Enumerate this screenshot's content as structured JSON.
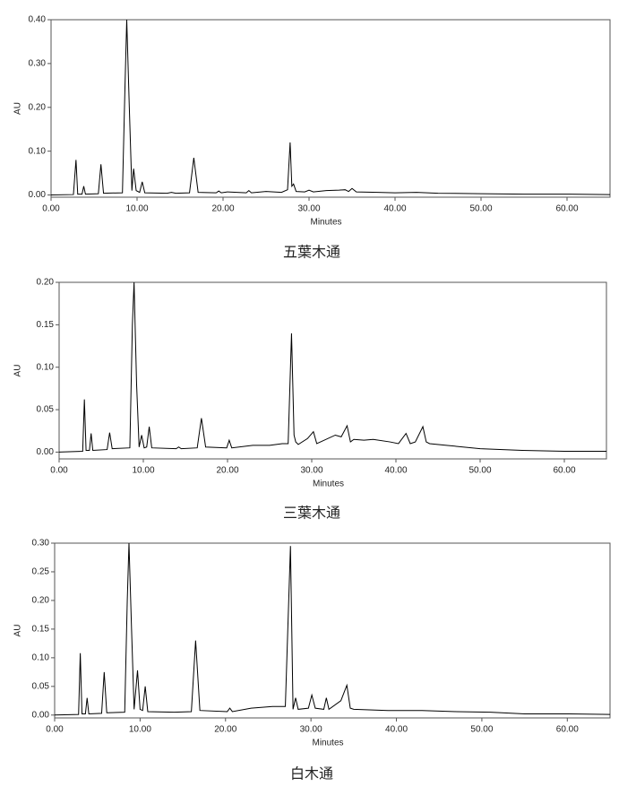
{
  "chart_data": [
    {
      "type": "line",
      "title": "五葉木通",
      "x_label": "Minutes",
      "y_label": "AU",
      "color": "#000000",
      "xlim": [
        0,
        65
      ],
      "ylim": [
        -0.005,
        0.4
      ],
      "xticks": [
        {
          "value": 0,
          "label": "0.00"
        },
        {
          "value": 10,
          "label": "10.00"
        },
        {
          "value": 20,
          "label": "20.00"
        },
        {
          "value": 30,
          "label": "30.00"
        },
        {
          "value": 40,
          "label": "40.00"
        },
        {
          "value": 50,
          "label": "50.00"
        },
        {
          "value": 60,
          "label": "60.00"
        }
      ],
      "yticks": [
        {
          "value": 0,
          "label": "0.00"
        },
        {
          "value": 0.1,
          "label": "0.10"
        },
        {
          "value": 0.2,
          "label": "0.20"
        },
        {
          "value": 0.3,
          "label": "0.30"
        },
        {
          "value": 0.4,
          "label": "0.40"
        }
      ],
      "x": [
        0,
        2.6,
        2.9,
        3.1,
        3.6,
        3.8,
        4.0,
        5.5,
        5.8,
        6.1,
        8.3,
        8.6,
        8.8,
        9.1,
        9.4,
        9.6,
        9.9,
        10.3,
        10.6,
        10.9,
        13.5,
        14,
        14.5,
        16.1,
        16.6,
        17.1,
        19.2,
        19.5,
        19.8,
        20.5,
        22.7,
        23,
        23.3,
        25,
        26.8,
        27.5,
        27.8,
        28.0,
        28.2,
        28.5,
        29.5,
        30,
        30.5,
        32,
        33.5,
        34.2,
        34.6,
        35,
        35.5,
        38,
        40,
        42.5,
        45,
        50,
        55,
        60,
        65
      ],
      "values": [
        0,
        0.001,
        0.08,
        0.002,
        0.002,
        0.02,
        0.002,
        0.003,
        0.07,
        0.004,
        0.005,
        0.25,
        0.4,
        0.2,
        0.01,
        0.06,
        0.01,
        0.006,
        0.03,
        0.005,
        0.004,
        0.006,
        0.004,
        0.005,
        0.085,
        0.006,
        0.005,
        0.009,
        0.005,
        0.007,
        0.005,
        0.01,
        0.005,
        0.008,
        0.006,
        0.012,
        0.12,
        0.02,
        0.025,
        0.008,
        0.007,
        0.011,
        0.007,
        0.01,
        0.011,
        0.012,
        0.008,
        0.015,
        0.007,
        0.006,
        0.005,
        0.006,
        0.004,
        0.003,
        0.002,
        0.002,
        0.001
      ]
    },
    {
      "type": "line",
      "title": "三葉木通",
      "x_label": "Minutes",
      "y_label": "AU",
      "color": "#000000",
      "xlim": [
        0,
        65
      ],
      "ylim": [
        -0.008,
        0.2
      ],
      "xticks": [
        {
          "value": 0,
          "label": "0.00"
        },
        {
          "value": 10,
          "label": "10.00"
        },
        {
          "value": 20,
          "label": "20.00"
        },
        {
          "value": 30,
          "label": "30.00"
        },
        {
          "value": 40,
          "label": "40.00"
        },
        {
          "value": 50,
          "label": "50.00"
        },
        {
          "value": 60,
          "label": "60.00"
        }
      ],
      "yticks": [
        {
          "value": 0,
          "label": "0.00"
        },
        {
          "value": 0.05,
          "label": "0.05"
        },
        {
          "value": 0.1,
          "label": "0.10"
        },
        {
          "value": 0.15,
          "label": "0.15"
        },
        {
          "value": 0.2,
          "label": "0.20"
        }
      ],
      "x": [
        0,
        2.8,
        3.0,
        3.2,
        3.6,
        3.8,
        4.0,
        5.7,
        6.0,
        6.3,
        8.4,
        8.7,
        8.9,
        9.2,
        9.5,
        9.8,
        10.1,
        10.4,
        10.7,
        11.0,
        13.9,
        14.2,
        14.5,
        16.4,
        16.9,
        17.4,
        19.9,
        20.2,
        20.5,
        23,
        25,
        26.5,
        27.2,
        27.6,
        27.9,
        28.1,
        28.4,
        29.5,
        30.2,
        30.6,
        32.8,
        33.5,
        34.2,
        34.6,
        35,
        36.2,
        37.3,
        39.3,
        40.3,
        41.2,
        41.7,
        42.3,
        43.2,
        43.6,
        44,
        46,
        50,
        55,
        60,
        65
      ],
      "values": [
        0,
        0.001,
        0.062,
        0.002,
        0.002,
        0.022,
        0.002,
        0.003,
        0.023,
        0.004,
        0.005,
        0.15,
        0.2,
        0.08,
        0.006,
        0.02,
        0.005,
        0.006,
        0.03,
        0.005,
        0.004,
        0.006,
        0.004,
        0.005,
        0.04,
        0.006,
        0.005,
        0.014,
        0.005,
        0.008,
        0.008,
        0.01,
        0.01,
        0.14,
        0.02,
        0.012,
        0.009,
        0.016,
        0.024,
        0.01,
        0.02,
        0.018,
        0.031,
        0.012,
        0.015,
        0.014,
        0.015,
        0.012,
        0.01,
        0.022,
        0.01,
        0.012,
        0.03,
        0.012,
        0.01,
        0.008,
        0.004,
        0.002,
        0.001,
        0.001
      ]
    },
    {
      "type": "line",
      "title": "白木通",
      "x_label": "Minutes",
      "y_label": "AU",
      "color": "#000000",
      "xlim": [
        0,
        65
      ],
      "ylim": [
        -0.005,
        0.3
      ],
      "xticks": [
        {
          "value": 0,
          "label": "0.00"
        },
        {
          "value": 10,
          "label": "10.00"
        },
        {
          "value": 20,
          "label": "20.00"
        },
        {
          "value": 30,
          "label": "30.00"
        },
        {
          "value": 40,
          "label": "40.00"
        },
        {
          "value": 50,
          "label": "50.00"
        },
        {
          "value": 60,
          "label": "60.00"
        }
      ],
      "yticks": [
        {
          "value": 0,
          "label": "0.00"
        },
        {
          "value": 0.05,
          "label": "0.05"
        },
        {
          "value": 0.1,
          "label": "0.10"
        },
        {
          "value": 0.15,
          "label": "0.15"
        },
        {
          "value": 0.2,
          "label": "0.20"
        },
        {
          "value": 0.25,
          "label": "0.25"
        },
        {
          "value": 0.3,
          "label": "0.30"
        }
      ],
      "x": [
        0,
        2.8,
        3.0,
        3.2,
        3.6,
        3.8,
        4.0,
        5.5,
        5.8,
        6.1,
        8.2,
        8.5,
        8.7,
        9.0,
        9.3,
        9.7,
        10.0,
        10.3,
        10.6,
        10.9,
        14,
        16.0,
        16.5,
        17.0,
        20.2,
        20.5,
        20.8,
        23,
        25.5,
        27.0,
        27.6,
        27.9,
        28.2,
        28.5,
        29.7,
        30.1,
        30.5,
        31.5,
        31.8,
        32.1,
        33.5,
        34.2,
        34.6,
        35,
        39,
        43,
        47,
        51,
        55,
        60,
        65
      ],
      "values": [
        0,
        0.001,
        0.108,
        0.002,
        0.002,
        0.03,
        0.002,
        0.003,
        0.075,
        0.004,
        0.005,
        0.2,
        0.3,
        0.15,
        0.01,
        0.078,
        0.01,
        0.008,
        0.05,
        0.006,
        0.005,
        0.006,
        0.13,
        0.008,
        0.006,
        0.012,
        0.006,
        0.012,
        0.015,
        0.015,
        0.295,
        0.01,
        0.03,
        0.01,
        0.012,
        0.035,
        0.012,
        0.01,
        0.03,
        0.01,
        0.025,
        0.052,
        0.012,
        0.01,
        0.008,
        0.008,
        0.006,
        0.005,
        0.002,
        0.002,
        0.001
      ]
    }
  ]
}
